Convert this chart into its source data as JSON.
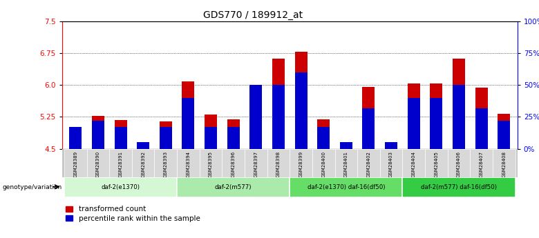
{
  "title": "GDS770 / 189912_at",
  "samples": [
    "GSM28389",
    "GSM28390",
    "GSM28391",
    "GSM28392",
    "GSM28393",
    "GSM28394",
    "GSM28395",
    "GSM28396",
    "GSM28397",
    "GSM28398",
    "GSM28399",
    "GSM28400",
    "GSM28401",
    "GSM28402",
    "GSM28403",
    "GSM28404",
    "GSM28405",
    "GSM28406",
    "GSM28407",
    "GSM28408"
  ],
  "transformed_count": [
    4.85,
    5.28,
    5.17,
    4.55,
    5.15,
    6.08,
    5.3,
    5.2,
    5.3,
    6.62,
    6.78,
    5.2,
    4.65,
    5.96,
    4.62,
    6.04,
    6.04,
    6.62,
    5.94,
    5.32
  ],
  "percentile_rank": [
    17,
    22,
    17,
    5,
    17,
    40,
    17,
    17,
    50,
    50,
    60,
    17,
    5,
    32,
    5,
    40,
    40,
    50,
    32,
    22
  ],
  "groups": [
    {
      "label": "daf-2(e1370)",
      "start": 0,
      "end": 5,
      "color": "#d4f7d4"
    },
    {
      "label": "daf-2(m577)",
      "start": 5,
      "end": 10,
      "color": "#aaeaaa"
    },
    {
      "label": "daf-2(e1370) daf-16(df50)",
      "start": 10,
      "end": 15,
      "color": "#66dd66"
    },
    {
      "label": "daf-2(m577) daf-16(df50)",
      "start": 15,
      "end": 20,
      "color": "#33cc44"
    }
  ],
  "ylim_left": [
    4.5,
    7.5
  ],
  "ylim_right": [
    0,
    100
  ],
  "yticks_left": [
    4.5,
    5.25,
    6.0,
    6.75,
    7.5
  ],
  "yticks_right": [
    0,
    25,
    50,
    75,
    100
  ],
  "bar_color_red": "#cc0000",
  "bar_color_blue": "#0000cc",
  "title_fontsize": 10,
  "tick_fontsize": 7.5,
  "genotype_label": "genotype/variation"
}
